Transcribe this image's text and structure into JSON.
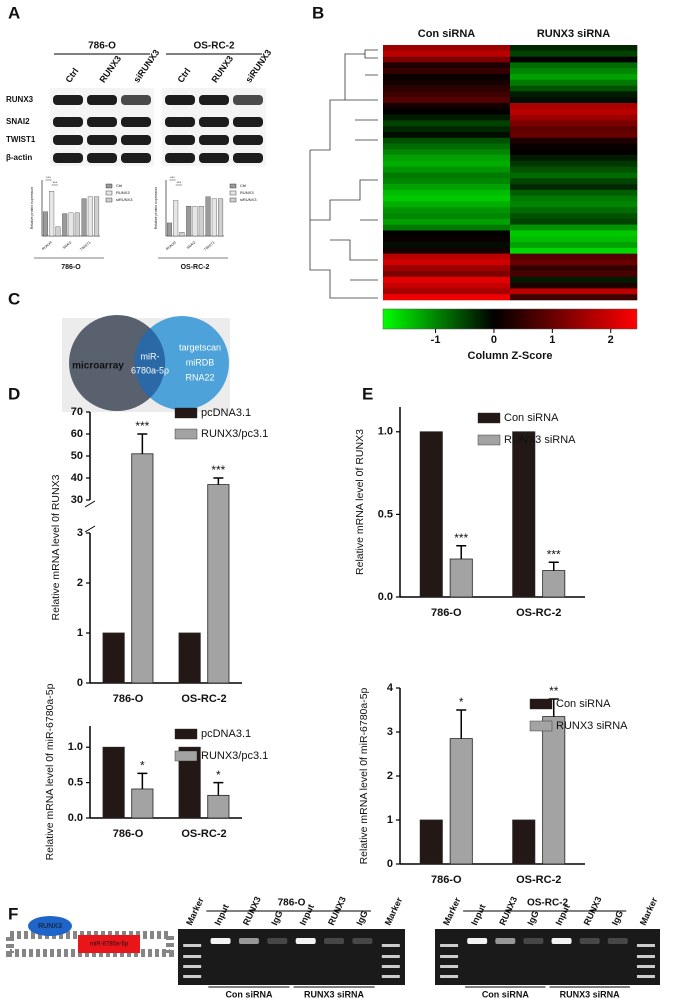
{
  "panel_labels": [
    "A",
    "B",
    "C",
    "D",
    "E",
    "F"
  ],
  "blot": {
    "groups": [
      "786-O",
      "OS-RC-2"
    ],
    "lanes": [
      "Ctrl",
      "RUNX3",
      "siRUNX3"
    ],
    "rows": [
      "RUNX3",
      "SNAI2",
      "TWIST1",
      "β-actin"
    ]
  },
  "venn": {
    "left": "microarray",
    "overlap": [
      "miR-",
      "6780a-5p"
    ],
    "right": [
      "targetscan",
      "miRDB",
      "RNA22"
    ]
  },
  "chip": {
    "protein": "RUNX3",
    "target": "miR-6780a-5p",
    "gels": [
      {
        "title": "786-O",
        "lanes": [
          "Marker",
          "Input",
          "RUNX3",
          "IgG",
          "Input",
          "RUNX3",
          "IgG",
          "Marker"
        ],
        "conditions": [
          "Con siRNA",
          "RUNX3 siRNA"
        ]
      },
      {
        "title": "OS-RC-2",
        "lanes": [
          "Marker",
          "Input",
          "RUNX3",
          "IgG",
          "Input",
          "RUNX3",
          "IgG",
          "Marker"
        ],
        "conditions": [
          "Con siRNA",
          "RUNX3 siRNA"
        ]
      }
    ]
  },
  "chart_data": [
    {
      "type": "bar",
      "y_label": "Relative protein expression",
      "x_label": "786-O",
      "categories": [
        "RUNX3",
        "SNAI2",
        "TWIST1"
      ],
      "ylim": [
        0,
        1.5
      ],
      "series": [
        {
          "name": "Ctrl",
          "color": "#9a9a9a",
          "values": [
            0.65,
            0.6,
            1.0
          ]
        },
        {
          "name": "RUNX3",
          "color": "#e6e6e6",
          "values": [
            1.2,
            0.62,
            1.05
          ]
        },
        {
          "name": "siRUNX3",
          "color": "#cfcfcf",
          "values": [
            0.25,
            0.62,
            1.05
          ]
        }
      ],
      "annotations": [
        "***",
        "***"
      ]
    },
    {
      "type": "bar",
      "y_label": "Relative protein expression",
      "x_label": "OS-RC-2",
      "categories": [
        "RUNX3",
        "SNAI2",
        "TWIST1"
      ],
      "ylim": [
        0,
        1.5
      ],
      "series": [
        {
          "name": "Ctrl",
          "color": "#9a9a9a",
          "values": [
            0.35,
            0.8,
            1.05
          ]
        },
        {
          "name": "RUNX3",
          "color": "#e6e6e6",
          "values": [
            0.95,
            0.8,
            1.0
          ]
        },
        {
          "name": "siRUNX3",
          "color": "#cfcfcf",
          "values": [
            0.1,
            0.8,
            1.0
          ]
        }
      ],
      "annotations": [
        "***",
        "***"
      ]
    },
    {
      "type": "heatmap",
      "columns": [
        "Con siRNA",
        "RUNX3 siRNA"
      ],
      "zlim": [
        -1.9,
        2.45
      ],
      "colorbar_ticks": [
        -1,
        0,
        1,
        2
      ],
      "colorbar_label": "Column Z-Score",
      "values": [
        [
          1.5,
          -0.3
        ],
        [
          1.8,
          -0.5
        ],
        [
          1.2,
          0
        ],
        [
          0.3,
          -0.8
        ],
        [
          0.5,
          -1
        ],
        [
          0.1,
          -1.2
        ],
        [
          0.2,
          -0.9
        ],
        [
          0.4,
          -0.6
        ],
        [
          0.6,
          -0.2
        ],
        [
          0.8,
          -0.1
        ],
        [
          0.2,
          1.6
        ],
        [
          0,
          1.8
        ],
        [
          -0.2,
          1.5
        ],
        [
          -0.5,
          1.2
        ],
        [
          -0.3,
          0.9
        ],
        [
          -0.1,
          1.0
        ],
        [
          -0.6,
          0.3
        ],
        [
          -0.8,
          0.1
        ],
        [
          -1,
          0
        ],
        [
          -1.2,
          -0.2
        ],
        [
          -1.3,
          -0.4
        ],
        [
          -1.1,
          -0.6
        ],
        [
          -0.9,
          -0.8
        ],
        [
          -1.0,
          -0.5
        ],
        [
          -1.2,
          -0.3
        ],
        [
          -1.4,
          -0.7
        ],
        [
          -1.5,
          -0.9
        ],
        [
          -1.3,
          -1.0
        ],
        [
          -1.1,
          -0.8
        ],
        [
          -1.0,
          -0.6
        ],
        [
          -1.2,
          -0.5
        ],
        [
          -0.9,
          -1.1
        ],
        [
          0,
          -1.5
        ],
        [
          0.1,
          -1.4
        ],
        [
          -0.1,
          -1.2
        ],
        [
          0.2,
          -1.6
        ],
        [
          1.8,
          0.8
        ],
        [
          2.0,
          1.0
        ],
        [
          1.5,
          0.5
        ],
        [
          1.2,
          0.7
        ],
        [
          2.2,
          -0.2
        ],
        [
          1.9,
          0.3
        ],
        [
          1.6,
          1.8
        ],
        [
          2.3,
          0.6
        ]
      ]
    },
    {
      "type": "bar",
      "y_label": "Relative mRNA level 0f RUNX3",
      "categories": [
        "786-O",
        "OS-RC-2"
      ],
      "broken_ylim": [
        [
          0,
          3
        ],
        [
          30,
          70
        ]
      ],
      "yticks": [
        0,
        1,
        2,
        3,
        30,
        40,
        50,
        60,
        70
      ],
      "series": [
        {
          "name": "pcDNA3.1",
          "color": "#231816",
          "values": [
            1,
            1
          ]
        },
        {
          "name": "RUNX3/pc3.1",
          "color": "#a3a3a3",
          "values": [
            51,
            37
          ],
          "errors": [
            9,
            3
          ],
          "annotations": [
            "***",
            "***"
          ]
        }
      ]
    },
    {
      "type": "bar",
      "y_label": "Relative mRNA level 0f miR-6780a-5p",
      "categories": [
        "786-O",
        "OS-RC-2"
      ],
      "ylim": [
        0,
        1.3
      ],
      "yticks": [
        {
          "value": 0,
          "label": "0.0"
        },
        0.5,
        {
          "value": 1,
          "label": "1.0"
        }
      ],
      "series": [
        {
          "name": "pcDNA3.1",
          "color": "#231816",
          "values": [
            1,
            1
          ]
        },
        {
          "name": "RUNX3/pc3.1",
          "color": "#a3a3a3",
          "values": [
            0.41,
            0.32
          ],
          "errors": [
            0.22,
            0.18
          ],
          "annotations": [
            "*",
            "*"
          ]
        }
      ]
    },
    {
      "type": "bar",
      "y_label": "Relative mRNA level 0f RUNX3",
      "categories": [
        "786-O",
        "OS-RC-2"
      ],
      "ylim": [
        0,
        1.15
      ],
      "yticks": [
        {
          "value": 0,
          "label": "0.0"
        },
        0.5,
        {
          "value": 1,
          "label": "1.0"
        }
      ],
      "series": [
        {
          "name": "Con siRNA",
          "color": "#231816",
          "values": [
            1,
            1
          ]
        },
        {
          "name": "RUNX3 siRNA",
          "color": "#a3a3a3",
          "values": [
            0.23,
            0.16
          ],
          "errors": [
            0.08,
            0.05
          ],
          "annotations": [
            "***",
            "***"
          ]
        }
      ]
    },
    {
      "type": "bar",
      "y_label": "Relative mRNA level 0f miR-6780a-5p",
      "categories": [
        "786-O",
        "OS-RC-2"
      ],
      "ylim": [
        0,
        4
      ],
      "yticks": [
        0,
        1,
        2,
        3,
        4
      ],
      "series": [
        {
          "name": "Con siRNA",
          "color": "#231816",
          "values": [
            1,
            1
          ]
        },
        {
          "name": "RUNX3 siRNA",
          "color": "#a3a3a3",
          "values": [
            2.85,
            3.35
          ],
          "errors": [
            0.65,
            0.4
          ],
          "annotations": [
            "*",
            "**"
          ]
        }
      ]
    }
  ]
}
